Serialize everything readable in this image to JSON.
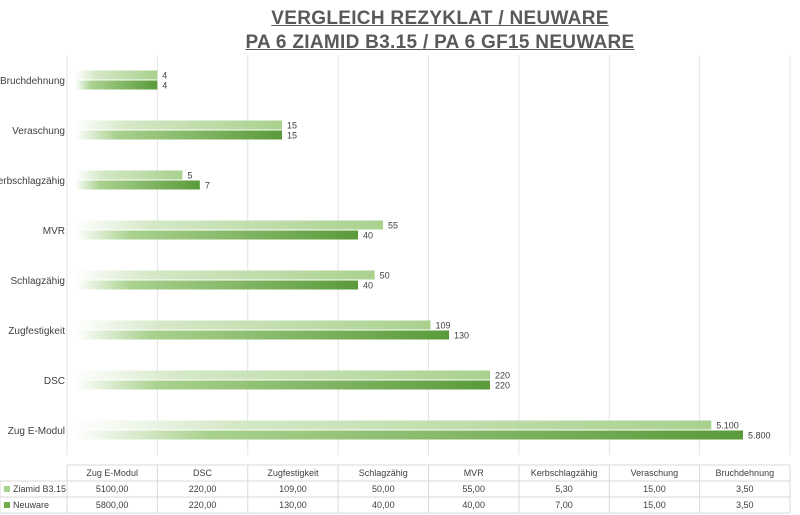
{
  "chart_data": {
    "type": "bar",
    "orientation": "horizontal",
    "title": "VERGLEICH REZYKLAT / NEUWARE",
    "subtitle": "PA 6 ZIAMID B3.15 / PA 6 GF15 NEUWARE",
    "categories": [
      "Zug E-Modul",
      "DSC",
      "Zugfestigkeit",
      "Schlagzähig",
      "MVR",
      "Kerbschlagzähig",
      "Veraschung",
      "Bruchdehnung"
    ],
    "series": [
      {
        "name": "Ziamid B3.15",
        "color": "#a9d18e",
        "values": [
          5100,
          220,
          109,
          50,
          55,
          5.3,
          15,
          3.5
        ],
        "bar_labels": [
          "5.100",
          "220",
          "109",
          "50",
          "55",
          "5",
          "15",
          "4"
        ],
        "table_values": [
          "5100,00",
          "220,00",
          "109,00",
          "50,00",
          "55,00",
          "5,30",
          "15,00",
          "3,50"
        ]
      },
      {
        "name": "Neuware",
        "color": "#70ad47",
        "values": [
          5800,
          220,
          130,
          40,
          40,
          7,
          15,
          3.5
        ],
        "bar_labels": [
          "5.800",
          "220",
          "130",
          "40",
          "40",
          "7",
          "15",
          "4"
        ],
        "table_values": [
          "5800,00",
          "220,00",
          "130,00",
          "40,00",
          "40,00",
          "7,00",
          "15,00",
          "3,50"
        ]
      }
    ],
    "grid": true,
    "legend": "data-table"
  }
}
